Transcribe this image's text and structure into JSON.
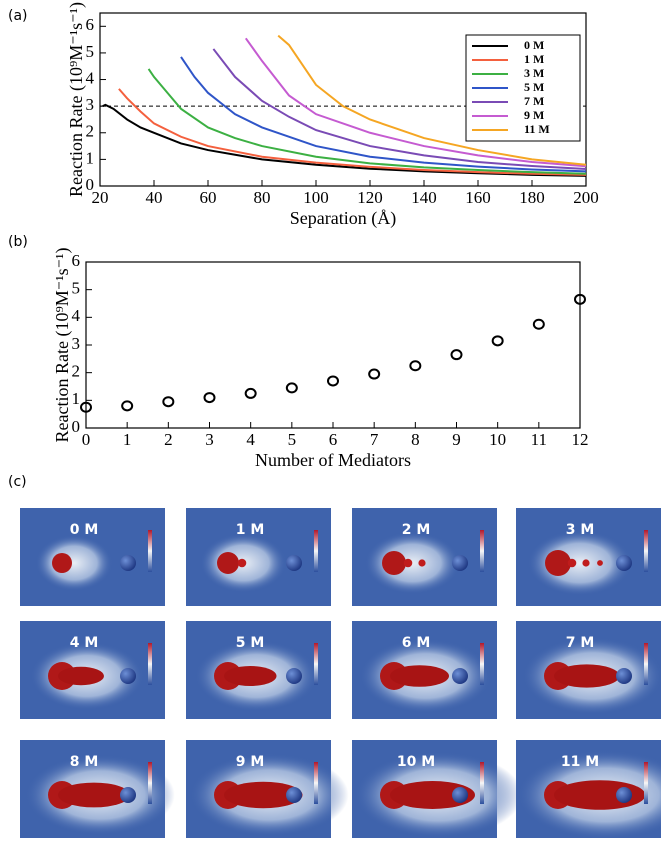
{
  "panel_labels": [
    "(a)",
    "(b)",
    "(c)"
  ],
  "chart_data": [
    {
      "type": "line",
      "x_label": "Separation (Å)",
      "y_label": "Reaction Rate (10⁹M⁻¹s⁻¹)",
      "xlim": [
        20,
        200
      ],
      "ylim": [
        0,
        6.5
      ],
      "xticks": [
        20,
        40,
        60,
        80,
        100,
        120,
        140,
        160,
        180,
        200
      ],
      "yticks": [
        0,
        1,
        2,
        3,
        4,
        5,
        6
      ],
      "reference_line": 3,
      "legend": "upper right",
      "series": [
        {
          "name": "0 M",
          "color": "#000000",
          "x": [
            21,
            22,
            25,
            30,
            35,
            40,
            50,
            60,
            80,
            100,
            120,
            140,
            160,
            180,
            200
          ],
          "values": [
            3.0,
            3.05,
            2.9,
            2.5,
            2.2,
            2.0,
            1.6,
            1.35,
            1.0,
            0.8,
            0.65,
            0.55,
            0.48,
            0.42,
            0.38
          ]
        },
        {
          "name": "1 M",
          "color": "#f4603e",
          "x": [
            27,
            30,
            35,
            40,
            50,
            60,
            80,
            100,
            120,
            140,
            160,
            180,
            200
          ],
          "values": [
            3.65,
            3.3,
            2.8,
            2.35,
            1.85,
            1.5,
            1.1,
            0.88,
            0.72,
            0.6,
            0.52,
            0.46,
            0.42
          ]
        },
        {
          "name": "3 M",
          "color": "#3cb043",
          "x": [
            38,
            40,
            45,
            50,
            60,
            70,
            80,
            100,
            120,
            140,
            160,
            180,
            200
          ],
          "values": [
            4.4,
            4.1,
            3.5,
            2.9,
            2.2,
            1.8,
            1.5,
            1.1,
            0.85,
            0.7,
            0.6,
            0.52,
            0.46
          ]
        },
        {
          "name": "5 M",
          "color": "#2f55c8",
          "x": [
            50,
            55,
            60,
            65,
            70,
            80,
            100,
            120,
            140,
            160,
            180,
            200
          ],
          "values": [
            4.85,
            4.1,
            3.5,
            3.1,
            2.7,
            2.2,
            1.5,
            1.1,
            0.88,
            0.73,
            0.62,
            0.55
          ]
        },
        {
          "name": "7 M",
          "color": "#7a4bb5",
          "x": [
            62,
            70,
            80,
            90,
            100,
            120,
            140,
            160,
            180,
            200
          ],
          "values": [
            5.15,
            4.1,
            3.2,
            2.6,
            2.1,
            1.5,
            1.15,
            0.9,
            0.75,
            0.64
          ]
        },
        {
          "name": "9 M",
          "color": "#c55bd1",
          "x": [
            74,
            80,
            90,
            100,
            120,
            140,
            160,
            180,
            200
          ],
          "values": [
            5.55,
            4.7,
            3.4,
            2.7,
            2.0,
            1.5,
            1.15,
            0.9,
            0.74
          ]
        },
        {
          "name": "11 M",
          "color": "#f5a623",
          "x": [
            86,
            90,
            100,
            110,
            120,
            140,
            160,
            180,
            200
          ],
          "values": [
            5.65,
            5.3,
            3.8,
            3.0,
            2.5,
            1.8,
            1.35,
            1.0,
            0.8
          ]
        }
      ]
    },
    {
      "type": "scatter",
      "x_label": "Number of Mediators",
      "y_label": "Reaction Rate (10⁹M⁻¹s⁻¹)",
      "xlim": [
        0,
        12
      ],
      "ylim": [
        0,
        6
      ],
      "xticks": [
        0,
        1,
        2,
        3,
        4,
        5,
        6,
        7,
        8,
        9,
        10,
        11,
        12
      ],
      "yticks": [
        0,
        1,
        2,
        3,
        4,
        5,
        6
      ],
      "x": [
        0,
        1,
        2,
        3,
        4,
        5,
        6,
        7,
        8,
        9,
        10,
        11,
        12
      ],
      "values": [
        0.75,
        0.8,
        0.95,
        1.1,
        1.25,
        1.45,
        1.7,
        1.95,
        2.25,
        2.65,
        3.15,
        3.75,
        4.65
      ],
      "color": "#000000"
    }
  ],
  "images": {
    "labels": [
      "0 M",
      "1 M",
      "2 M",
      "3 M",
      "4 M",
      "5 M",
      "6 M",
      "7 M",
      "8 M",
      "9 M",
      "10 M",
      "11 M"
    ]
  }
}
